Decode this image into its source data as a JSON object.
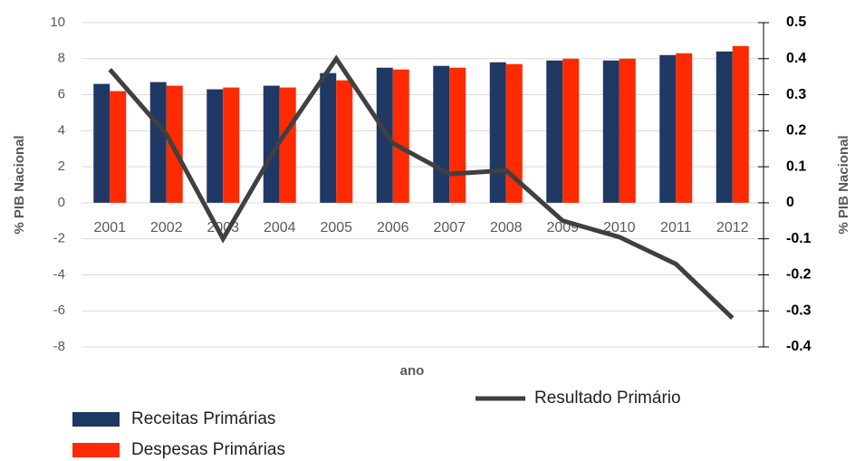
{
  "chart_data": {
    "type": "bar",
    "categories": [
      "2001",
      "2002",
      "2003",
      "2004",
      "2005",
      "2006",
      "2007",
      "2008",
      "2009",
      "2010",
      "2011",
      "2012"
    ],
    "series": [
      {
        "name": "Receitas Primárias",
        "color": "#203864",
        "values": [
          6.6,
          6.7,
          6.3,
          6.5,
          7.2,
          7.5,
          7.6,
          7.8,
          7.9,
          7.9,
          8.2,
          8.4
        ]
      },
      {
        "name": "Despesas Primárias",
        "color": "#ff2a00",
        "values": [
          6.2,
          6.5,
          6.4,
          6.4,
          6.8,
          7.4,
          7.5,
          7.7,
          8.0,
          8.0,
          8.3,
          8.7
        ]
      },
      {
        "name": "Resultado Primário",
        "color": "#404040",
        "type": "line",
        "axis": "y2",
        "values": [
          0.37,
          0.19,
          -0.1,
          0.17,
          0.4,
          0.165,
          0.08,
          0.09,
          -0.05,
          -0.095,
          -0.17,
          -0.32
        ]
      }
    ],
    "x_label": "ano",
    "y_label": "% PIB Nacional",
    "y2_label": "% PIB Nacional",
    "ylim": [
      -8,
      10
    ],
    "yticks": [
      -8,
      -6,
      -4,
      -2,
      0,
      2,
      4,
      6,
      8,
      10
    ],
    "y2lim": [
      -0.4,
      0.5
    ],
    "y2ticks": [
      -0.4,
      -0.3,
      -0.2,
      -0.1,
      0,
      0.1,
      0.2,
      0.3,
      0.4,
      0.5
    ],
    "grid": true
  }
}
